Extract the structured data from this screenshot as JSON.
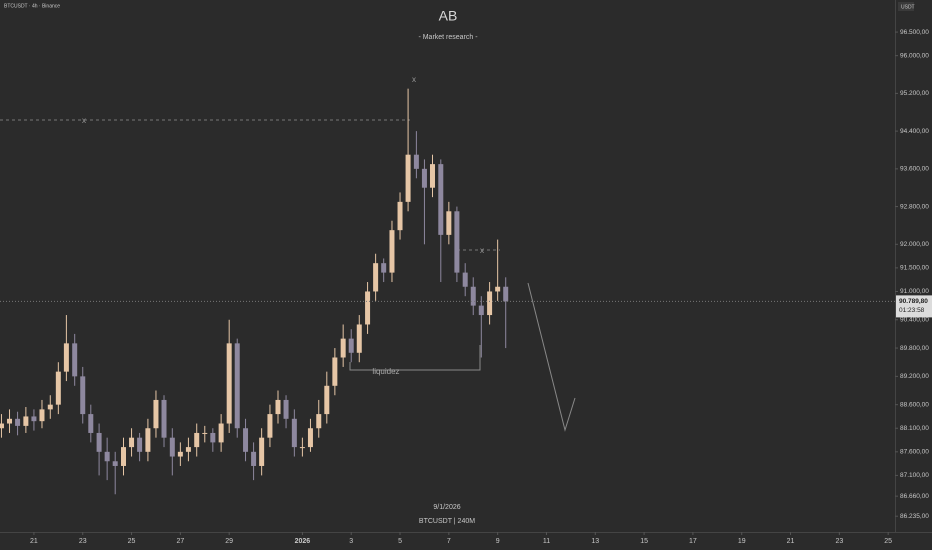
{
  "chart_data": {
    "type": "candlestick",
    "title": "AB",
    "subtitle": "- Market research -",
    "symbol_info": "BTCUSDT · 4h · Binance",
    "currency": "USDT",
    "footer_date": "9/1/2026",
    "footer_symbol": "BTCUSDT | 240M",
    "annotations": {
      "liquidity": "liquidez",
      "marker": "x"
    },
    "up_color": "#e6c6a6",
    "down_color": "#8e889f",
    "x": [
      -1.33,
      -1,
      -0.67,
      -0.33,
      0,
      0.33,
      0.67,
      1,
      1.33,
      1.67,
      2,
      2.33,
      2.67,
      3,
      3.33,
      3.67,
      4,
      4.33,
      4.67,
      5,
      5.33,
      5.67,
      6,
      6.33,
      6.67,
      7,
      7.33,
      7.67,
      8,
      8.33,
      8.67,
      9,
      9.33,
      9.67,
      10,
      10.33,
      10.67,
      11,
      11.33,
      11.67,
      12,
      12.33,
      12.67,
      13,
      13.33,
      13.67,
      14,
      14.33,
      14.67,
      15,
      15.33,
      15.67,
      16,
      16.33,
      16.67,
      17,
      17.33,
      17.67,
      18,
      18.33,
      18.67,
      19,
      19.33
    ],
    "open": [
      88100,
      88200,
      88300,
      88150,
      88350,
      88250,
      88500,
      88600,
      89300,
      89900,
      89200,
      88400,
      88000,
      87600,
      87400,
      87300,
      87700,
      87900,
      87600,
      88100,
      88700,
      87900,
      87500,
      87600,
      87700,
      88000,
      88000,
      87800,
      88200,
      89900,
      88100,
      87600,
      87300,
      87900,
      88400,
      88700,
      88300,
      87700,
      87700,
      88100,
      88400,
      89000,
      89600,
      90000,
      89700,
      90300,
      91000,
      91600,
      91400,
      92300,
      92900,
      93900,
      93600,
      93200,
      93700,
      92200,
      92700,
      91400,
      91100,
      90700,
      90500,
      91000,
      91100
    ],
    "high": [
      88400,
      88500,
      88450,
      88550,
      88500,
      88700,
      88800,
      89500,
      90500,
      90100,
      89400,
      88600,
      88200,
      87900,
      87600,
      87900,
      88100,
      88000,
      88300,
      88900,
      88800,
      88100,
      87800,
      87900,
      88200,
      88150,
      88100,
      88400,
      90400,
      90000,
      88300,
      87800,
      88100,
      88600,
      88900,
      88800,
      88500,
      87900,
      88300,
      88700,
      89300,
      89800,
      90300,
      90200,
      90500,
      91200,
      91800,
      91700,
      92500,
      93100,
      95300,
      94400,
      93800,
      93900,
      93800,
      92900,
      92800,
      91600,
      91300,
      90900,
      91200,
      92100,
      91300
    ],
    "low": [
      87900,
      88000,
      87950,
      88000,
      88050,
      88100,
      88300,
      88400,
      89100,
      89000,
      88200,
      87800,
      87100,
      87000,
      86700,
      87100,
      87500,
      87400,
      87400,
      87900,
      87700,
      87100,
      87300,
      87400,
      87500,
      87800,
      87600,
      87600,
      88000,
      87900,
      87400,
      87000,
      87100,
      87700,
      88200,
      88100,
      87500,
      87500,
      87600,
      87900,
      88200,
      88800,
      89400,
      89500,
      89500,
      90100,
      90800,
      91200,
      91200,
      92100,
      92700,
      93400,
      92000,
      93000,
      91200,
      92000,
      91200,
      90900,
      90500,
      89600,
      90300,
      90800,
      89800
    ],
    "close": [
      88200,
      88300,
      88150,
      88350,
      88250,
      88500,
      88600,
      89300,
      89900,
      89200,
      88400,
      88000,
      87600,
      87400,
      87300,
      87700,
      87900,
      87600,
      88100,
      88700,
      87900,
      87500,
      87600,
      87700,
      88000,
      88000,
      87800,
      88200,
      89900,
      88100,
      87600,
      87300,
      87900,
      88400,
      88700,
      88300,
      87700,
      87700,
      88100,
      88400,
      89000,
      89600,
      90000,
      89700,
      90300,
      91000,
      91600,
      91400,
      92300,
      92900,
      93900,
      93600,
      93200,
      93700,
      92200,
      92700,
      91400,
      91100,
      90700,
      90500,
      91000,
      91100,
      90790
    ],
    "xlim": [
      -1.39,
      35.28
    ],
    "xticks": [
      {
        "value": 0,
        "label": "21"
      },
      {
        "value": 2,
        "label": "23"
      },
      {
        "value": 4,
        "label": "25"
      },
      {
        "value": 6,
        "label": "27"
      },
      {
        "value": 8,
        "label": "29"
      },
      {
        "value": 11,
        "label": "2026"
      },
      {
        "value": 13,
        "label": "3"
      },
      {
        "value": 15,
        "label": "5"
      },
      {
        "value": 17,
        "label": "7"
      },
      {
        "value": 19,
        "label": "9"
      },
      {
        "value": 21,
        "label": "11"
      },
      {
        "value": 23,
        "label": "13"
      },
      {
        "value": 25,
        "label": "15"
      },
      {
        "value": 27,
        "label": "17"
      },
      {
        "value": 29,
        "label": "19"
      },
      {
        "value": 31,
        "label": "21"
      },
      {
        "value": 33,
        "label": "23"
      },
      {
        "value": 35,
        "label": "25"
      }
    ],
    "ylim": [
      85900,
      97180
    ],
    "yticks": [
      {
        "value": 96500,
        "label": "96.500,00"
      },
      {
        "value": 96000,
        "label": "96.000,00"
      },
      {
        "value": 95200,
        "label": "95.200,00"
      },
      {
        "value": 94400,
        "label": "94.400,00"
      },
      {
        "value": 93600,
        "label": "93.600,00"
      },
      {
        "value": 92800,
        "label": "92.800,00"
      },
      {
        "value": 92000,
        "label": "92.000,00"
      },
      {
        "value": 91500,
        "label": "91.500,00"
      },
      {
        "value": 91000,
        "label": "91.000,00"
      },
      {
        "value": 90400,
        "label": "90.400,00"
      },
      {
        "value": 89800,
        "label": "89.800,00"
      },
      {
        "value": 89200,
        "label": "89.200,00"
      },
      {
        "value": 88600,
        "label": "88.600,00"
      },
      {
        "value": 88100,
        "label": "88.100,00"
      },
      {
        "value": 87600,
        "label": "87.600,00"
      },
      {
        "value": 87100,
        "label": "87.100,00"
      },
      {
        "value": 86660,
        "label": "86.660,00"
      },
      {
        "value": 86235,
        "label": "86.235,00"
      }
    ],
    "last_price": {
      "value": 90789.8,
      "label": "90.789,80"
    },
    "countdown": "01:23:58"
  }
}
